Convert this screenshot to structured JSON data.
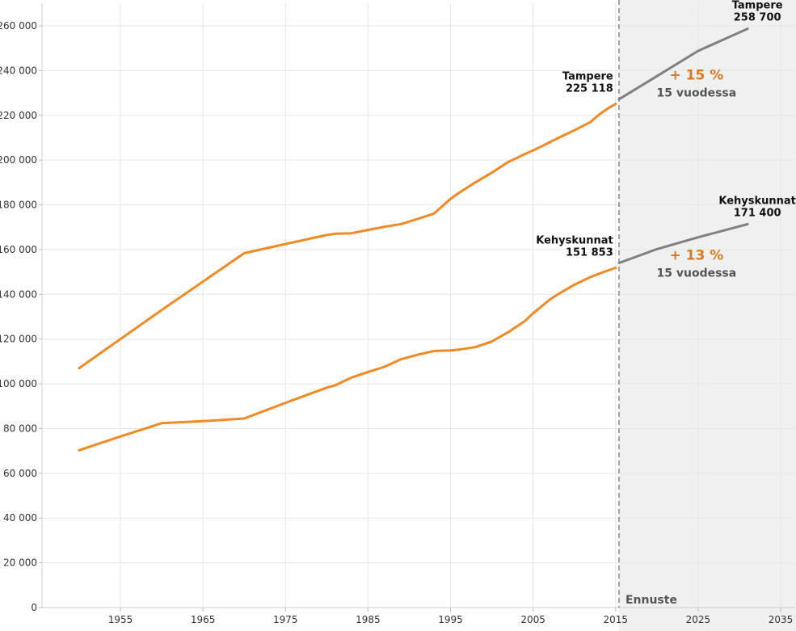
{
  "chart_data": {
    "type": "line",
    "title": "",
    "xlabel": "",
    "ylabel": "",
    "xlim": [
      1945,
      2035
    ],
    "ylim": [
      0,
      270000
    ],
    "grid": true,
    "x_ticks": [
      1955,
      1965,
      1975,
      1985,
      1995,
      2005,
      2015,
      2025,
      2035
    ],
    "x_tick_labels": [
      "1955",
      "1965",
      "1975",
      "1985",
      "1995",
      "2005",
      "2015",
      "2025",
      "2035"
    ],
    "y_ticks": [
      0,
      20000,
      40000,
      60000,
      80000,
      100000,
      120000,
      140000,
      160000,
      180000,
      200000,
      220000,
      240000,
      260000
    ],
    "y_tick_labels": [
      "0",
      "20 000",
      "40 000",
      "60 000",
      "80 000",
      "100 000",
      "120 000",
      "140 000",
      "160 000",
      "180 000",
      "200 000",
      "220 000",
      "240 000",
      "260 000"
    ],
    "forecast_start": 2016,
    "forecast_label": "Ennuste",
    "colors": {
      "history": "#f08a24",
      "forecast": "#808080",
      "forecast_bg": "#f0f0f0",
      "divider": "#888888",
      "pct": "#d87a20"
    },
    "series": [
      {
        "key": "tampere",
        "kind": "history",
        "x": [
          1950,
          1960,
          1970,
          1975,
          1980,
          1981,
          1983,
          1985,
          1987,
          1989,
          1991,
          1993,
          1995,
          1996,
          1998,
          2000,
          2002,
          2003,
          2004,
          2005,
          2006,
          2008,
          2010,
          2012,
          2013,
          2014,
          2015
        ],
        "y": [
          107000,
          133000,
          158400,
          162500,
          166500,
          167100,
          167300,
          168800,
          170200,
          171400,
          173700,
          176100,
          182700,
          185300,
          190000,
          194400,
          199200,
          200900,
          202700,
          204300,
          206100,
          209800,
          213300,
          217100,
          220300,
          222900,
          225118
        ]
      },
      {
        "key": "kehyskunnat",
        "kind": "history",
        "x": [
          1950,
          1955,
          1960,
          1965,
          1970,
          1975,
          1980,
          1981,
          1983,
          1985,
          1987,
          1989,
          1991,
          1993,
          1995,
          1996,
          1998,
          2000,
          2002,
          2004,
          2005,
          2006,
          2007,
          2008,
          2010,
          2012,
          2013,
          2014,
          2015
        ],
        "y": [
          70300,
          76500,
          82400,
          83300,
          84500,
          91500,
          98300,
          99300,
          102800,
          105300,
          107600,
          111000,
          113000,
          114700,
          114900,
          115300,
          116400,
          118900,
          123100,
          128000,
          131500,
          134500,
          137600,
          140000,
          144300,
          147800,
          149200,
          150600,
          151853
        ]
      },
      {
        "key": "tampere_forecast",
        "kind": "forecast",
        "x": [
          2016,
          2020,
          2025,
          2031
        ],
        "y": [
          227200,
          237500,
          248800,
          258700
        ]
      },
      {
        "key": "kehyskunnat_forecast",
        "kind": "forecast",
        "x": [
          2016,
          2020,
          2025,
          2031
        ],
        "y": [
          154000,
          160200,
          165500,
          171400
        ]
      }
    ],
    "annotations": [
      {
        "name": "anno-tampere-2015",
        "lines": [
          "Tampere",
          "225 118"
        ],
        "x": 2015,
        "y": 225118,
        "placement": "above-left"
      },
      {
        "name": "anno-kehyskunnat-2015",
        "lines": [
          "Kehyskunnat",
          "151 853"
        ],
        "x": 2015,
        "y": 151853,
        "placement": "above-left"
      },
      {
        "name": "anno-tampere-2031",
        "lines": [
          "Tampere",
          "258 700"
        ],
        "x": 2031,
        "y": 258700,
        "placement": "above"
      },
      {
        "name": "anno-kehyskunnat-2031",
        "lines": [
          "Kehyskunnat",
          "171 400"
        ],
        "x": 2031,
        "y": 171400,
        "placement": "above"
      }
    ],
    "growth_labels": [
      {
        "name": "growth-tampere",
        "pct": "+ 15 %",
        "sub": "15 vuodessa",
        "x": 2025,
        "y": 236000
      },
      {
        "name": "growth-kehyskunnat",
        "pct": "+ 13 %",
        "sub": "15 vuodessa",
        "x": 2025,
        "y": 155500
      }
    ]
  }
}
